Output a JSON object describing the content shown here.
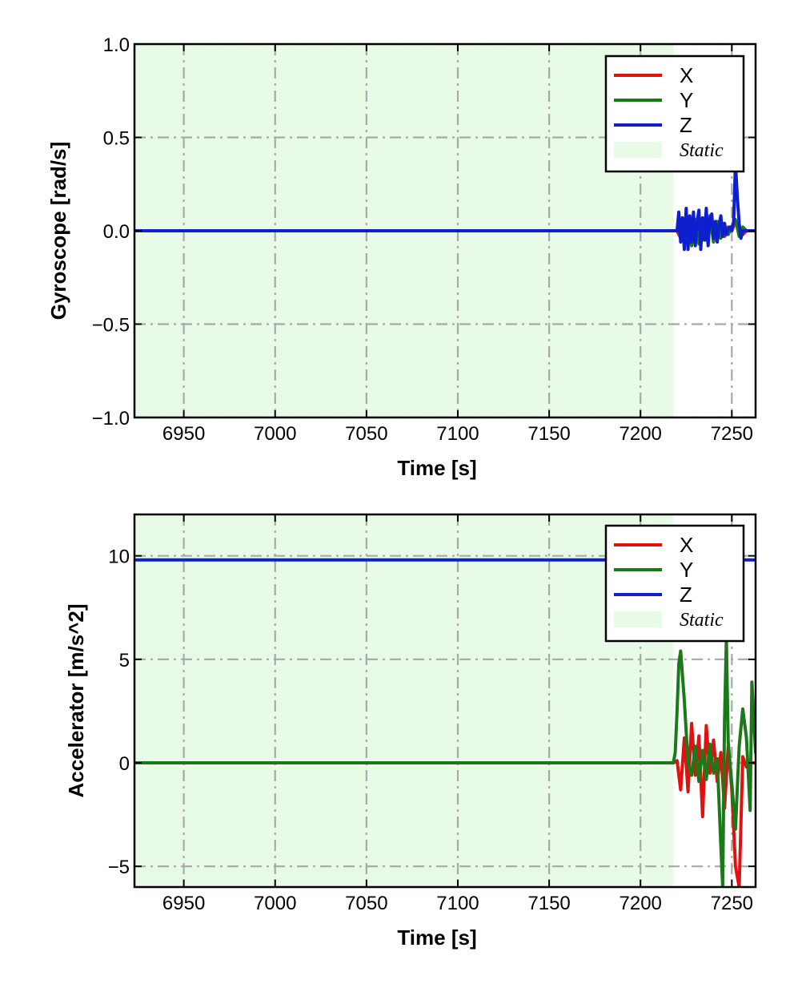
{
  "chart_data": [
    {
      "type": "line",
      "ylabel": "Gyroscope [rad/s]",
      "xlabel": "Time [s]",
      "xlim": [
        6923,
        7263
      ],
      "ylim": [
        -1.0,
        1.0
      ],
      "xticks": [
        6950,
        7000,
        7050,
        7100,
        7150,
        7200,
        7250
      ],
      "yticks": [
        1.0,
        0.5,
        0.0,
        -0.5,
        -1.0
      ],
      "ytick_labels": [
        "1.0",
        "0.5",
        "0.0",
        "−0.5",
        "−1.0"
      ],
      "grid": true,
      "legend_position": "top-right",
      "static_region": {
        "label": "Static",
        "x_start": 6923,
        "x_end": 7218,
        "color": "#e8fbe6"
      },
      "series": [
        {
          "name": "X",
          "color": "#e0120f",
          "x": [
            6923,
            7220,
            7222,
            7224,
            7226,
            7228,
            7230,
            7232,
            7234,
            7236,
            7238,
            7240,
            7242,
            7244,
            7246,
            7248,
            7250,
            7252,
            7254,
            7256,
            7258,
            7263
          ],
          "y": [
            0.0,
            0.0,
            -0.04,
            0.06,
            -0.05,
            0.04,
            -0.06,
            0.05,
            -0.03,
            0.04,
            0.05,
            -0.04,
            0.03,
            0.05,
            -0.03,
            0.02,
            0.0,
            0.05,
            0.02,
            -0.02,
            0.0,
            0.0
          ]
        },
        {
          "name": "Y",
          "color": "#1a7a1a",
          "x": [
            6923,
            7220,
            7222,
            7224,
            7226,
            7228,
            7230,
            7232,
            7234,
            7236,
            7238,
            7240,
            7242,
            7244,
            7246,
            7248,
            7250,
            7252,
            7254,
            7256,
            7258,
            7263
          ],
          "y": [
            0.0,
            0.0,
            0.05,
            -0.06,
            0.07,
            -0.08,
            0.06,
            -0.07,
            0.05,
            -0.05,
            0.08,
            -0.06,
            0.05,
            -0.04,
            0.03,
            -0.02,
            0.02,
            0.06,
            -0.03,
            0.02,
            0.0,
            0.0
          ]
        },
        {
          "name": "Z",
          "color": "#0e1fcf",
          "x": [
            6923,
            7220,
            7221,
            7222,
            7223,
            7224,
            7225,
            7226,
            7227,
            7228,
            7229,
            7230,
            7231,
            7232,
            7233,
            7234,
            7235,
            7236,
            7237,
            7238,
            7239,
            7240,
            7241,
            7242,
            7243,
            7244,
            7245,
            7246,
            7247,
            7248,
            7249,
            7250,
            7251,
            7252,
            7253,
            7254,
            7255,
            7256,
            7263
          ],
          "y": [
            0.0,
            0.0,
            0.1,
            -0.06,
            0.07,
            -0.1,
            0.12,
            -0.1,
            0.08,
            -0.06,
            0.1,
            -0.08,
            0.05,
            0.11,
            -0.1,
            0.07,
            -0.05,
            0.12,
            -0.08,
            0.06,
            0.09,
            -0.04,
            0.05,
            -0.06,
            0.03,
            0.08,
            -0.03,
            0.04,
            -0.02,
            0.01,
            0.02,
            0.0,
            0.05,
            0.36,
            0.18,
            0.04,
            -0.04,
            0.0,
            0.0
          ]
        }
      ]
    },
    {
      "type": "line",
      "ylabel": "Accelerator [m/s^2]",
      "xlabel": "Time [s]",
      "xlim": [
        6923,
        7263
      ],
      "ylim": [
        -6.0,
        12.0
      ],
      "xticks": [
        6950,
        7000,
        7050,
        7100,
        7150,
        7200,
        7250
      ],
      "yticks": [
        10,
        5,
        0,
        -5
      ],
      "ytick_labels": [
        "10",
        "5",
        "0",
        "−5"
      ],
      "grid": true,
      "legend_position": "top-right",
      "static_region": {
        "label": "Static",
        "x_start": 6923,
        "x_end": 7218,
        "color": "#e8fbe6"
      },
      "series": [
        {
          "name": "X",
          "color": "#e0120f",
          "x": [
            6923,
            7218,
            7220,
            7222,
            7224,
            7226,
            7228,
            7230,
            7232,
            7234,
            7236,
            7238,
            7240,
            7242,
            7244,
            7246,
            7248,
            7250,
            7252,
            7254,
            7256,
            7258,
            7260,
            7263
          ],
          "y": [
            0.0,
            0.0,
            0.1,
            -1.3,
            1.2,
            -1.4,
            1.9,
            -0.6,
            1.3,
            -2.6,
            1.8,
            -0.5,
            1.1,
            -0.9,
            0.5,
            -2.2,
            0.8,
            -1.3,
            -5.0,
            -6.0,
            0.3,
            -0.2,
            0.0,
            0.0
          ]
        },
        {
          "name": "Y",
          "color": "#1a7a1a",
          "x": [
            6923,
            7218,
            7219,
            7220,
            7221,
            7222,
            7224,
            7226,
            7228,
            7230,
            7232,
            7234,
            7236,
            7238,
            7240,
            7242,
            7244,
            7245,
            7246,
            7247,
            7248,
            7250,
            7252,
            7254,
            7256,
            7258,
            7260,
            7261,
            7263
          ],
          "y": [
            0.0,
            0.0,
            0.5,
            2.5,
            4.8,
            5.4,
            3.0,
            0.0,
            -0.6,
            0.8,
            -0.9,
            0.6,
            -0.8,
            0.9,
            -0.5,
            0.2,
            -4.0,
            -6.0,
            2.0,
            6.0,
            1.0,
            -1.0,
            -3.2,
            0.8,
            2.6,
            1.2,
            -2.3,
            3.9,
            0.5
          ]
        },
        {
          "name": "Z",
          "color": "#0e1fcf",
          "x": [
            6923,
            7263
          ],
          "y": [
            9.8,
            9.8
          ]
        }
      ]
    }
  ]
}
